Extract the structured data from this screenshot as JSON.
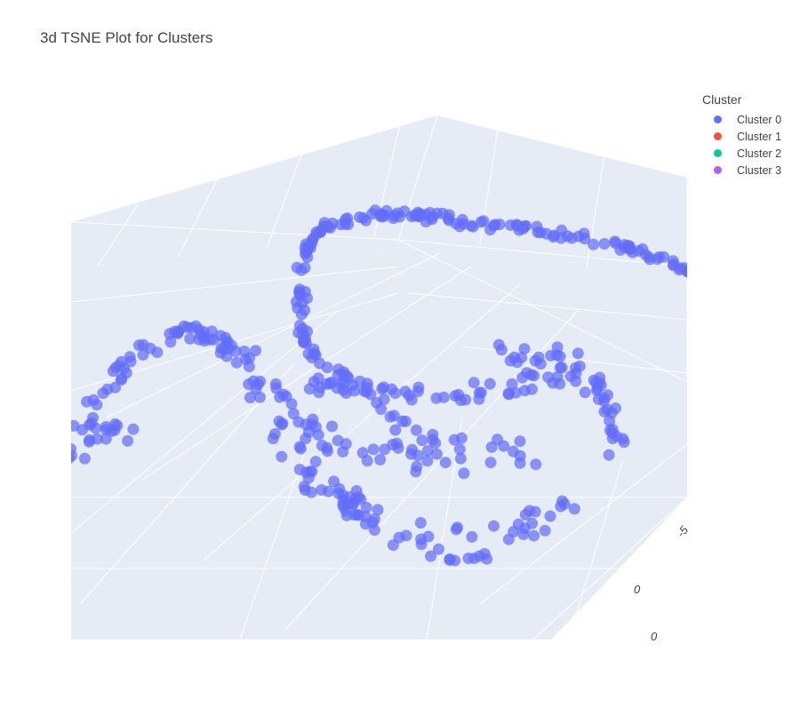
{
  "chart_data": {
    "type": "scatter",
    "title": "3d TSNE Plot for Clusters",
    "legend_title": "Cluster",
    "legend_placement": "top-right",
    "grid": true,
    "series": [
      {
        "name": "Cluster 0",
        "color": "#636efa"
      },
      {
        "name": "Cluster 1",
        "color": "#ef553b"
      },
      {
        "name": "Cluster 2",
        "color": "#00cc96"
      },
      {
        "name": "Cluster 3",
        "color": "#ab63fa"
      }
    ],
    "visible_tick_labels": [
      "0",
      "0",
      "-5"
    ]
  }
}
